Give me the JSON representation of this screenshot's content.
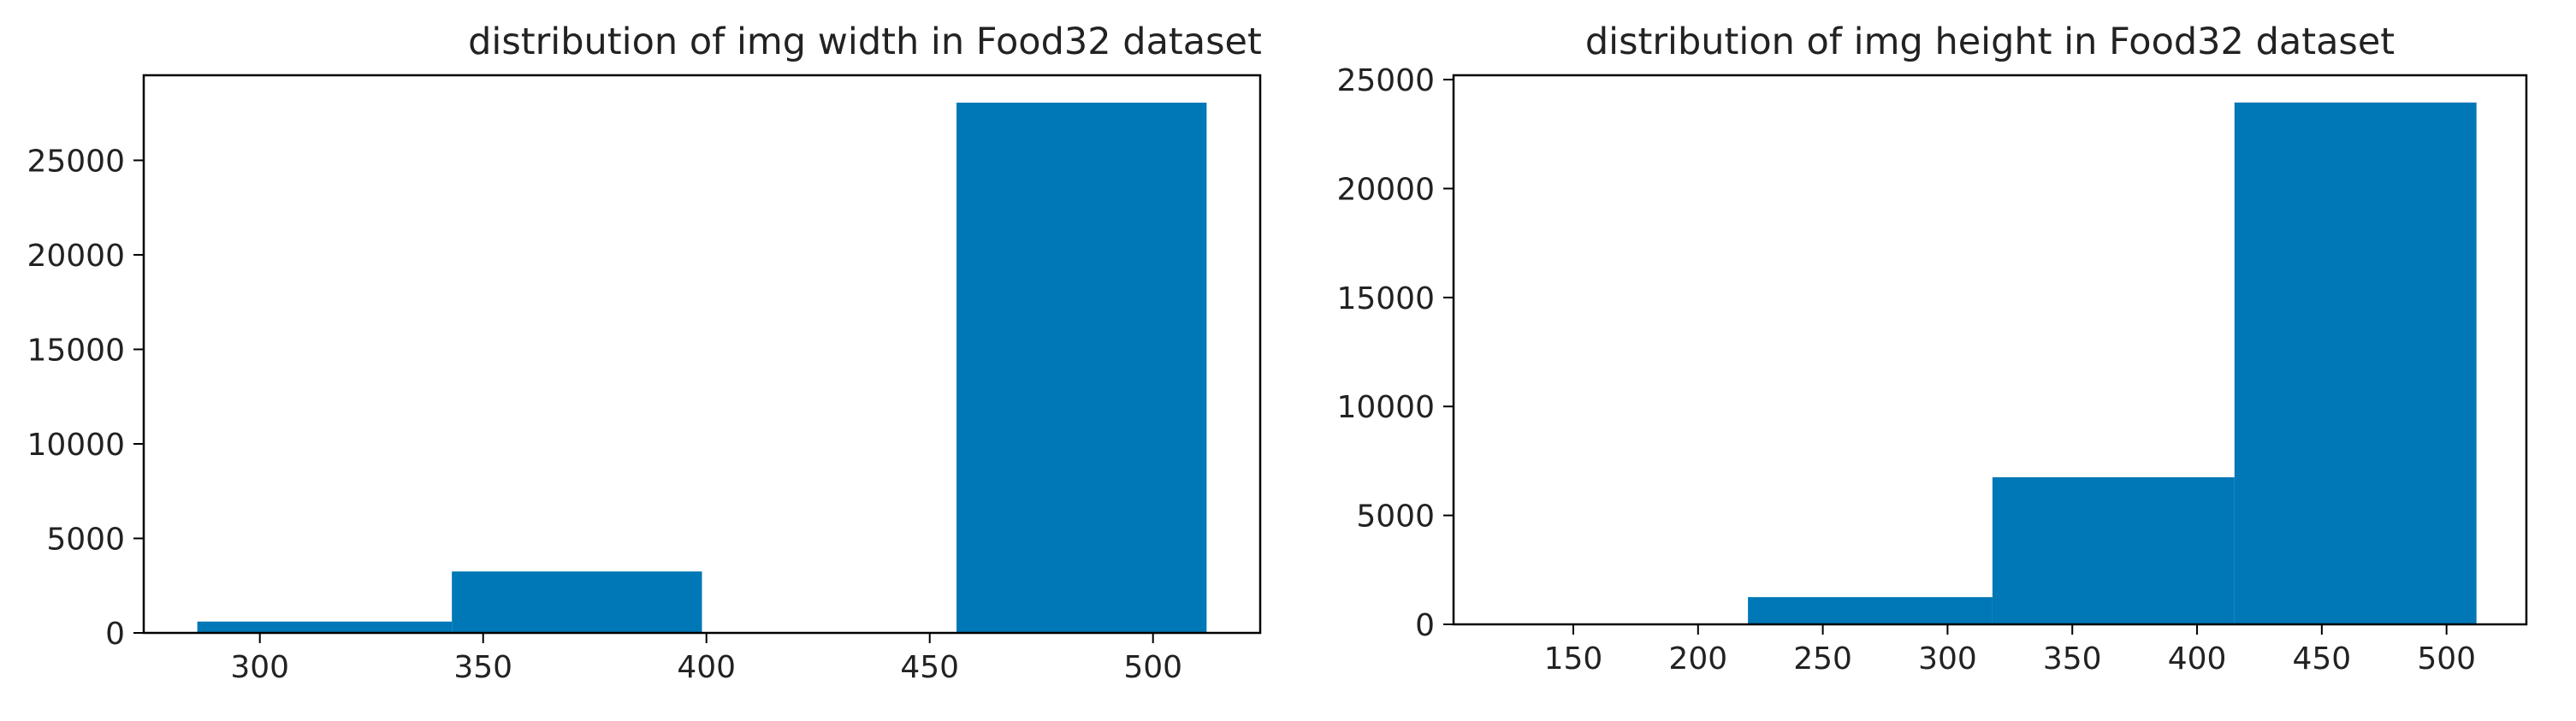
{
  "chart_data": [
    {
      "type": "bar",
      "histogram": true,
      "title": "distribution of img width in Food32 dataset",
      "xlabel": "",
      "ylabel": "",
      "color": "#0077b6",
      "bins": [
        {
          "x0": 286,
          "x1": 343,
          "value": 600
        },
        {
          "x0": 343,
          "x1": 399,
          "value": 3250
        },
        {
          "x0": 399,
          "x1": 456,
          "value": 0
        },
        {
          "x0": 456,
          "x1": 512,
          "value": 28050
        }
      ],
      "xlim": [
        274,
        524
      ],
      "ylim": [
        0,
        29500
      ],
      "xticks": [
        300,
        350,
        400,
        450,
        500
      ],
      "yticks": [
        0,
        5000,
        10000,
        15000,
        20000,
        25000
      ],
      "grid": false
    },
    {
      "type": "bar",
      "histogram": true,
      "title": "distribution of img height in Food32 dataset",
      "xlabel": "",
      "ylabel": "",
      "color": "#0077b6",
      "bins": [
        {
          "x0": 122,
          "x1": 220,
          "value": 0
        },
        {
          "x0": 220,
          "x1": 318,
          "value": 1250
        },
        {
          "x0": 318,
          "x1": 415,
          "value": 6750
        },
        {
          "x0": 415,
          "x1": 512,
          "value": 23950
        }
      ],
      "xlim": [
        102,
        532
      ],
      "ylim": [
        0,
        25200
      ],
      "xticks": [
        150,
        200,
        250,
        300,
        350,
        400,
        450,
        500
      ],
      "yticks": [
        0,
        5000,
        10000,
        15000,
        20000,
        25000
      ],
      "grid": false
    }
  ]
}
